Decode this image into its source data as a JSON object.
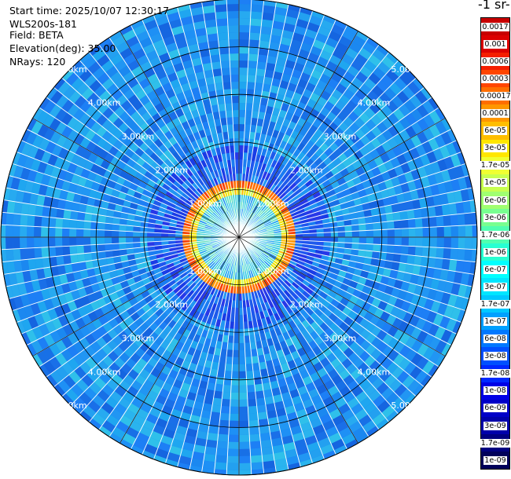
{
  "info": {
    "start_time": "Start time: 2025/10/07 12:30:17",
    "device": "WLS200s-181",
    "field": "Field: BETA",
    "elevation": "Elevation(deg): 35.00",
    "nrays": "NRays: 120"
  },
  "colorbar": {
    "unit_title": "-1 sr-",
    "levels": [
      "0.0017",
      "0.001",
      "0.0006",
      "0.0003",
      "0.00017",
      "0.0001",
      "6e-05",
      "3e-05",
      "1.7e-05",
      "1e-05",
      "6e-06",
      "3e-06",
      "1.7e-06",
      "1e-06",
      "6e-07",
      "3e-07",
      "1.7e-07",
      "1e-07",
      "6e-08",
      "3e-08",
      "1.7e-08",
      "1e-08",
      "6e-09",
      "3e-09",
      "1.7e-09",
      "1e-09"
    ],
    "colors": [
      "#c80000",
      "#dc0000",
      "#f51e00",
      "#ff4600",
      "#ff6e00",
      "#ff9600",
      "#ffbe00",
      "#ffe600",
      "#f0ff32",
      "#c8ff50",
      "#a0ff70",
      "#78ff90",
      "#50ffb0",
      "#28ffd2",
      "#00ffff",
      "#00e6ff",
      "#00c8ff",
      "#00a0ff",
      "#0078ff",
      "#0050ff",
      "#0028ff",
      "#0000e6",
      "#0000c8",
      "#0000aa",
      "#000080",
      "#00005a"
    ]
  },
  "range_labels": [
    "1.00km",
    "2.00km",
    "3.00km",
    "4.00km",
    "5.00km"
  ],
  "chart_data": {
    "type": "heatmap",
    "projection": "polar PPI",
    "field": "BETA",
    "elevation_deg": 35.0,
    "n_rays": 120,
    "range_rings_km": [
      1,
      2,
      3,
      4,
      5
    ],
    "max_range_km": 5.0,
    "color_scale": "log",
    "value_min": 1e-09,
    "value_max": 0.0017,
    "background_level": "1e-08 to 3e-08",
    "ring_feature": {
      "range_km": 1.1,
      "level": "1.7e-05 to 6e-05"
    }
  }
}
